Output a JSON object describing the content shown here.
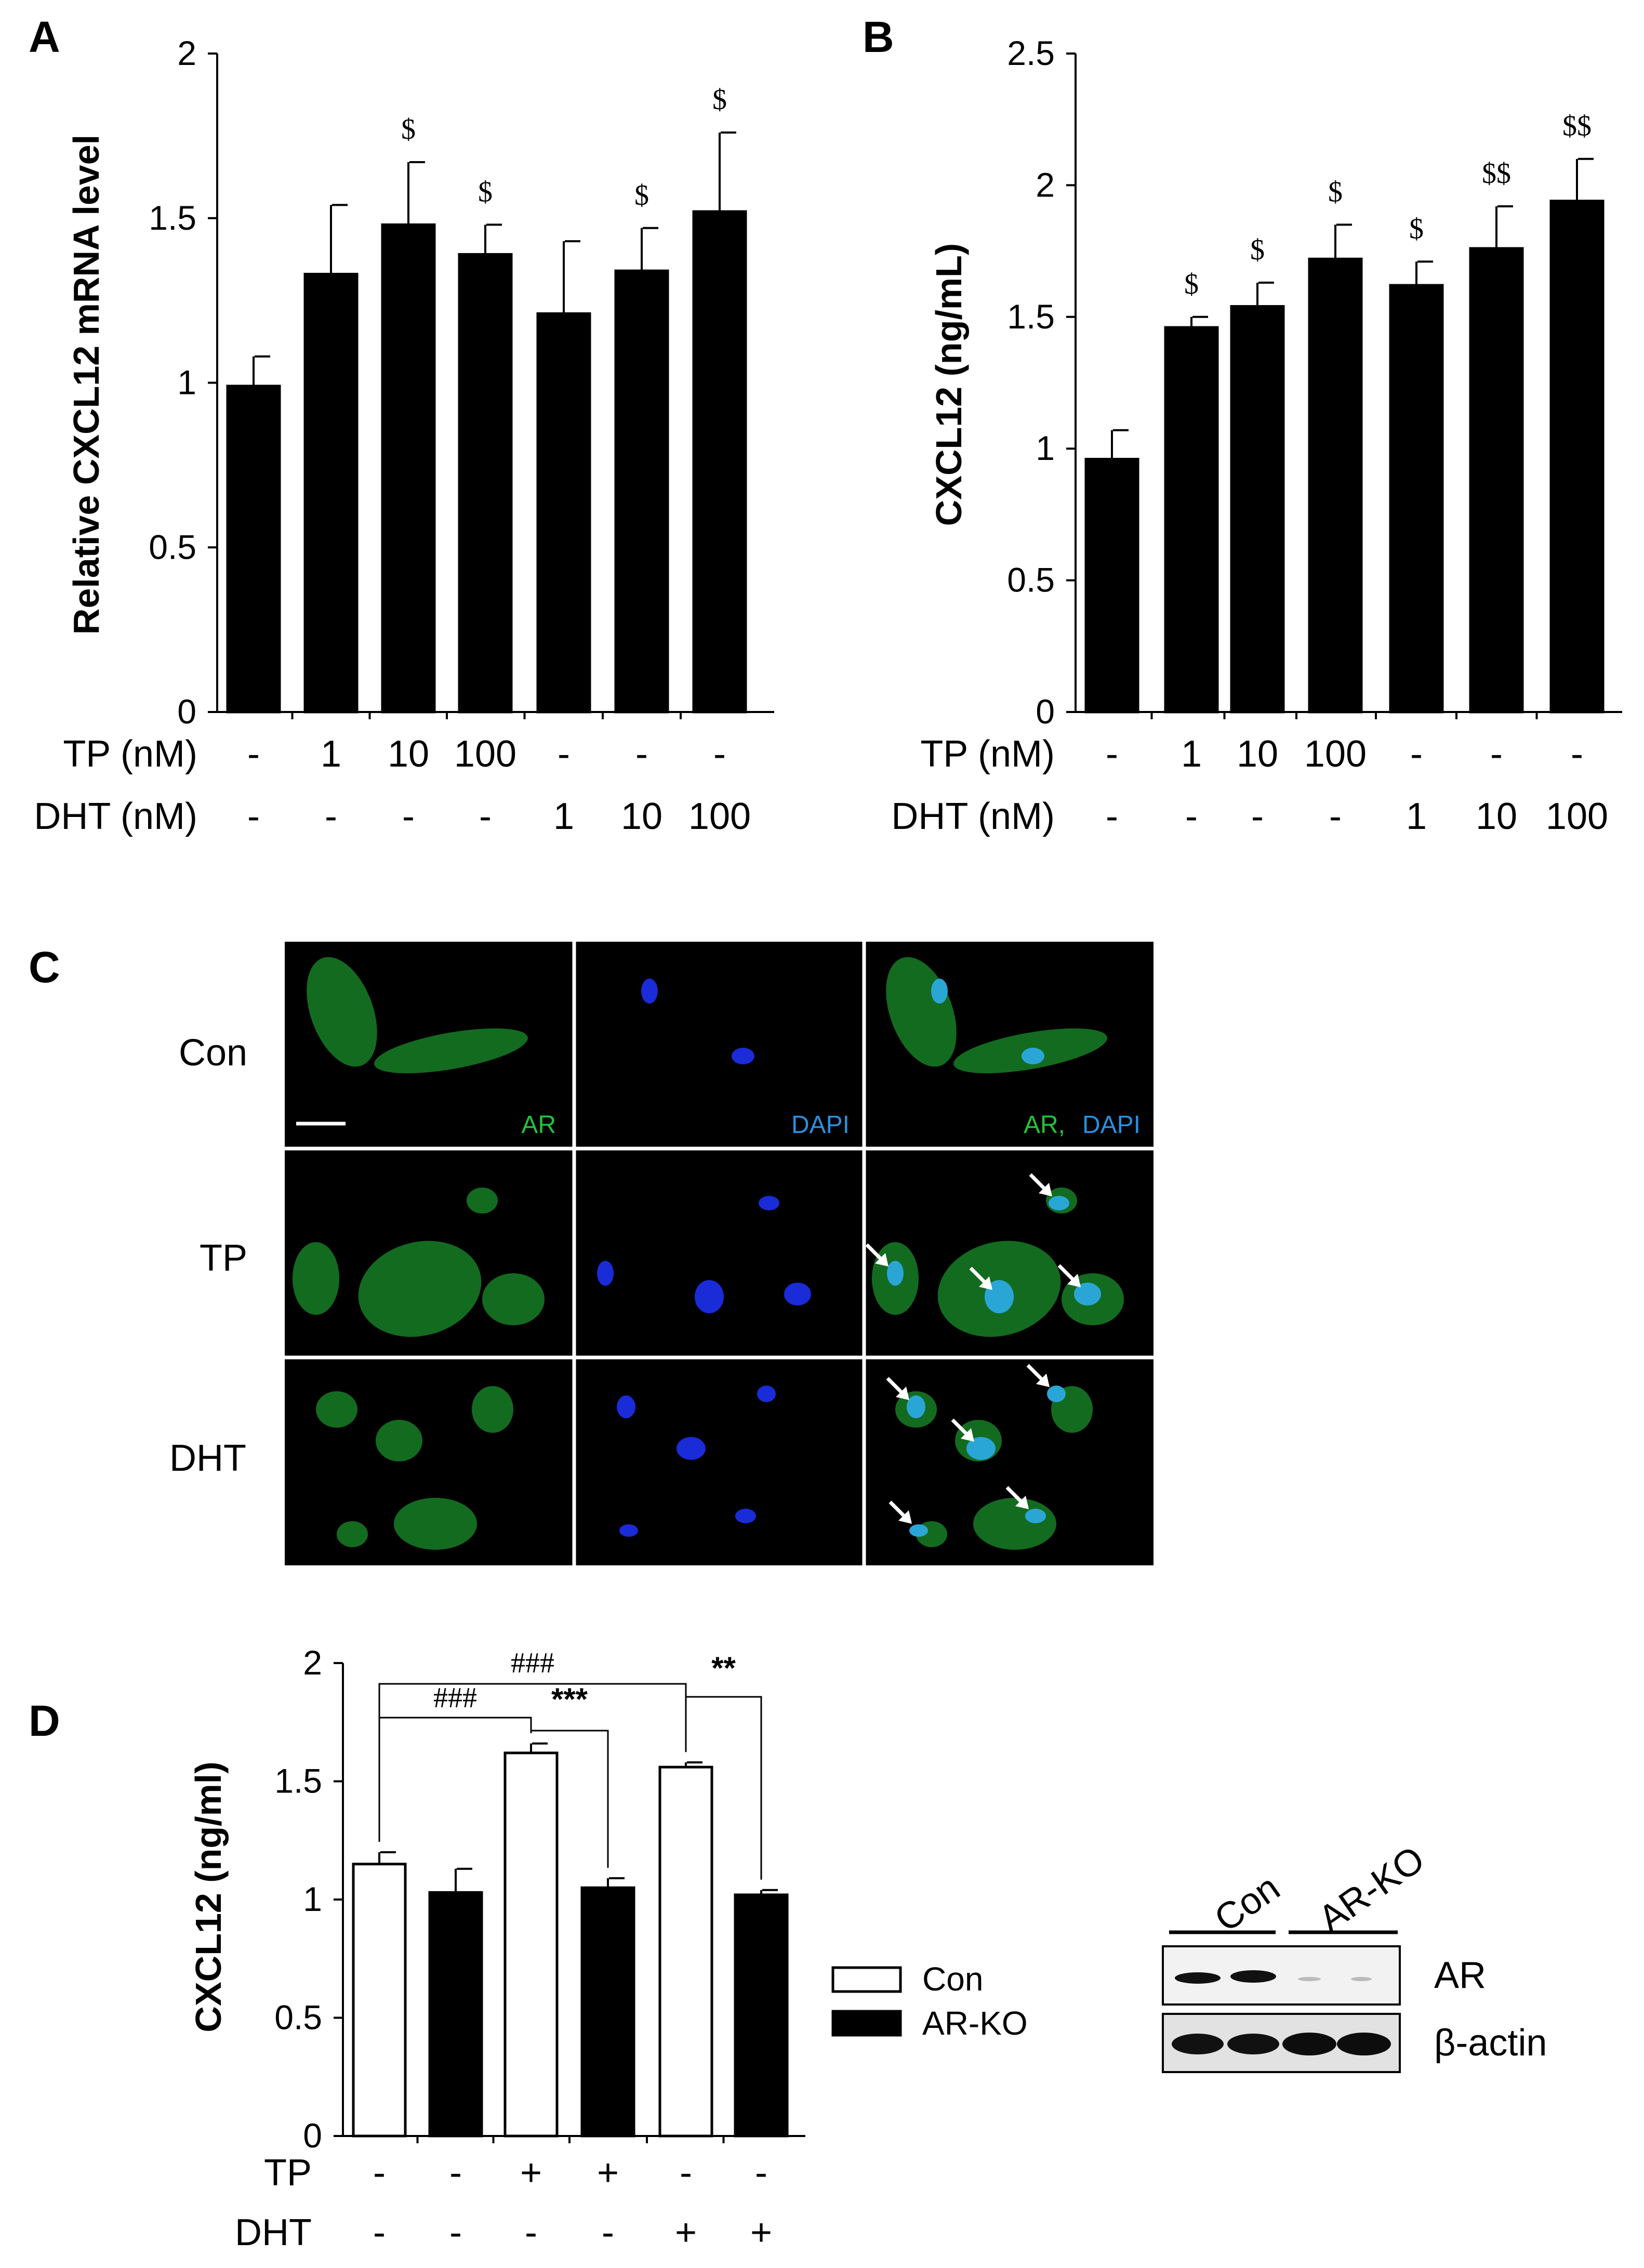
{
  "chart_data": [
    {
      "panel": "A",
      "type": "bar",
      "ylabel": "Relative CXCL12 mRNA level",
      "ylim": [
        0,
        2
      ],
      "yticks": [
        "0",
        "0.5",
        "1",
        "1.5",
        "2"
      ],
      "conditions": [
        {
          "label": "TP (nM)",
          "values": [
            "-",
            "1",
            "10",
            "100",
            "-",
            "-",
            "-"
          ]
        },
        {
          "label": "DHT (nM)",
          "values": [
            "-",
            "-",
            "-",
            "-",
            "1",
            "10",
            "100"
          ]
        }
      ],
      "values": [
        0.99,
        1.33,
        1.48,
        1.39,
        1.21,
        1.34,
        1.52
      ],
      "errors": [
        0.09,
        0.21,
        0.19,
        0.09,
        0.22,
        0.13,
        0.24
      ],
      "significance": [
        "",
        "",
        "$",
        "$",
        "",
        "$",
        "$"
      ],
      "bar_color": "#000000"
    },
    {
      "panel": "B",
      "type": "bar",
      "ylabel": "CXCL12 (ng/mL)",
      "ylim": [
        0,
        2.5
      ],
      "yticks": [
        "0",
        "0.5",
        "1",
        "1.5",
        "2",
        "2.5"
      ],
      "conditions": [
        {
          "label": "TP (nM)",
          "values": [
            "-",
            "1",
            "10",
            "100",
            "-",
            "-",
            "-"
          ]
        },
        {
          "label": "DHT (nM)",
          "values": [
            "-",
            "-",
            "-",
            "-",
            "1",
            "10",
            "100"
          ]
        }
      ],
      "values": [
        0.96,
        1.46,
        1.54,
        1.72,
        1.62,
        1.76,
        1.94
      ],
      "errors": [
        0.11,
        0.04,
        0.09,
        0.13,
        0.09,
        0.16,
        0.16
      ],
      "significance": [
        "",
        "$",
        "$",
        "$",
        "$",
        "$$",
        "$$"
      ],
      "bar_color": "#000000"
    },
    {
      "panel": "D",
      "type": "bar",
      "ylabel": "CXCL12 (ng/ml)",
      "ylim": [
        0,
        2
      ],
      "yticks": [
        "0",
        "0.5",
        "1",
        "1.5",
        "2"
      ],
      "conditions": [
        {
          "label": "TP",
          "values": [
            "-",
            "-",
            "+",
            "+",
            "-",
            "-"
          ]
        },
        {
          "label": "DHT",
          "values": [
            "-",
            "-",
            "-",
            "-",
            "+",
            "+"
          ]
        }
      ],
      "series_per_bar": [
        "Con",
        "AR-KO",
        "Con",
        "AR-KO",
        "Con",
        "AR-KO"
      ],
      "values": [
        1.15,
        1.03,
        1.62,
        1.05,
        1.56,
        1.02
      ],
      "errors": [
        0.05,
        0.1,
        0.04,
        0.04,
        0.02,
        0.02
      ],
      "legend": [
        {
          "name": "Con",
          "fill": "#ffffff"
        },
        {
          "name": "AR-KO",
          "fill": "#000000"
        }
      ],
      "brackets": [
        {
          "from": 0,
          "to": 2,
          "label": "###"
        },
        {
          "from": 0,
          "to": 4,
          "label": "###"
        },
        {
          "from": 2,
          "to": 3,
          "label": "***"
        },
        {
          "from": 4,
          "to": 5,
          "label": "**"
        }
      ]
    }
  ],
  "panel_c": {
    "letter": "C",
    "rows": [
      "Con",
      "TP",
      "DHT"
    ],
    "channel_labels": [
      "AR",
      "DAPI"
    ],
    "merge_label_ar": "AR,",
    "merge_label_dapi": "DAPI",
    "colors": {
      "ar": "#22c33a",
      "dapi": "#1a2bd8",
      "merge_nucleus": "#2aa6d6"
    }
  },
  "blot": {
    "groups": [
      "Con",
      "AR-KO"
    ],
    "bands": [
      "AR",
      "β-actin"
    ]
  },
  "labels": {
    "a": "A",
    "b": "B",
    "d": "D"
  }
}
